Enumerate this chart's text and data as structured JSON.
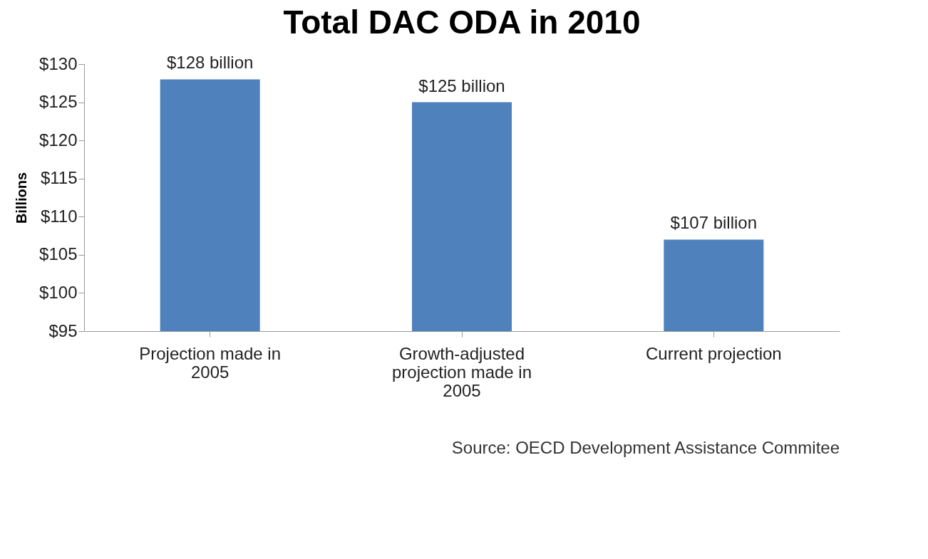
{
  "chart_data": {
    "type": "bar",
    "title": "Total DAC ODA in 2010",
    "ylabel": "Billions",
    "categories": [
      "Projection made in 2005",
      "Growth-adjusted projection made in 2005",
      "Current projection"
    ],
    "values": [
      128,
      125,
      107
    ],
    "color": "#4f81bd",
    "value_labels": [
      "$128 billion",
      "$125 billion",
      "$107 billion"
    ],
    "ylim": [
      95,
      130
    ],
    "yticks": [
      {
        "value": 95,
        "label": "$95"
      },
      {
        "value": 100,
        "label": "$100"
      },
      {
        "value": 105,
        "label": "$105"
      },
      {
        "value": 110,
        "label": "$110"
      },
      {
        "value": 115,
        "label": "$115"
      },
      {
        "value": 120,
        "label": "$120"
      },
      {
        "value": 125,
        "label": "$125"
      },
      {
        "value": 130,
        "label": "$130"
      }
    ],
    "grid": false,
    "annotations": [
      "Source: OECD Development Assistance Commitee"
    ]
  }
}
